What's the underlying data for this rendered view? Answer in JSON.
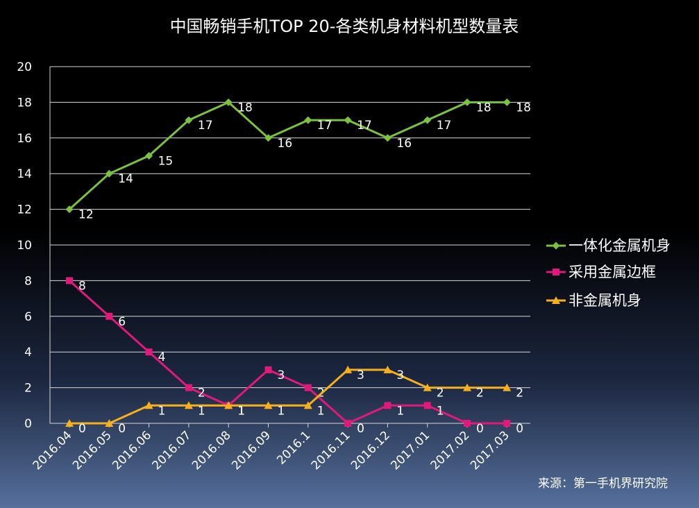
{
  "chart_data": {
    "type": "line",
    "title": "中国畅销手机TOP 20-各类机身材料机型数量表",
    "categories": [
      "2016.04",
      "2016.05",
      "2016.06",
      "2016.07",
      "2016.08",
      "2016.09",
      "2016.1",
      "2016.11",
      "2016.12",
      "2017.01",
      "2017.02",
      "2017.03"
    ],
    "ylim": [
      0,
      20
    ],
    "yticks": [
      0,
      2,
      4,
      6,
      8,
      10,
      12,
      14,
      16,
      18,
      20
    ],
    "grid": true,
    "legend_position": "right",
    "series": [
      {
        "name": "一体化金属机身",
        "values": [
          12,
          14,
          15,
          17,
          18,
          16,
          17,
          17,
          16,
          17,
          18,
          18
        ],
        "color": "#7cc242",
        "marker": "diamond"
      },
      {
        "name": "采用金属边框",
        "values": [
          8,
          6,
          4,
          2,
          1,
          3,
          2,
          0,
          1,
          1,
          0,
          0
        ],
        "color": "#e0197a",
        "marker": "square"
      },
      {
        "name": "非金属机身",
        "values": [
          0,
          0,
          1,
          1,
          1,
          1,
          1,
          3,
          3,
          2,
          2,
          2
        ],
        "color": "#f6b01e",
        "marker": "triangle"
      }
    ],
    "source": "来源：第一手机界研究院"
  }
}
